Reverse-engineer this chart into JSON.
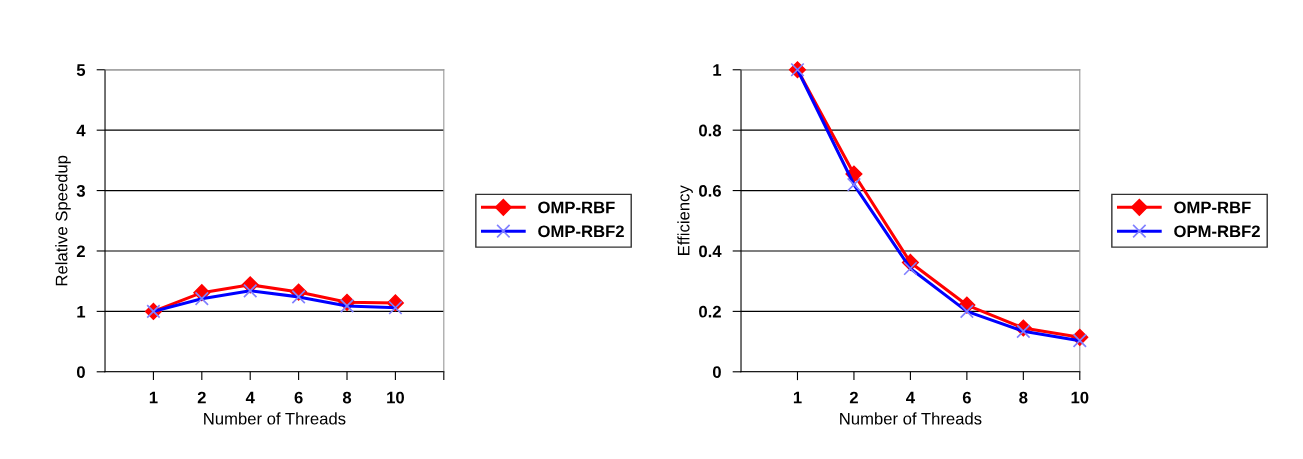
{
  "chart_data": [
    {
      "type": "line",
      "xlabel": "Number of Threads",
      "ylabel": "Relative Speedup",
      "categories": [
        "1",
        "2",
        "4",
        "6",
        "8",
        "10",
        null
      ],
      "ylim": [
        0,
        5
      ],
      "yticks": [
        0,
        1,
        2,
        3,
        4,
        5
      ],
      "grid": "y",
      "legend": "right",
      "series": [
        {
          "name": "OMP-RBF",
          "color": "#ff0000",
          "marker": "diamond",
          "values": [
            1,
            1.31,
            1.44,
            1.32,
            1.15,
            1.14,
            null
          ]
        },
        {
          "name": "OMP-RBF2",
          "color": "#0000ff",
          "marker": "cross",
          "values": [
            1,
            1.21,
            1.34,
            1.24,
            1.09,
            1.06,
            null
          ]
        }
      ]
    },
    {
      "type": "line",
      "xlabel": "Number of Threads",
      "ylabel": "Efficiency",
      "categories": [
        "1",
        "2",
        "4",
        "6",
        "8",
        "10"
      ],
      "ylim": [
        0,
        1
      ],
      "yticks": [
        0,
        0.2,
        0.4,
        0.6,
        0.8,
        1
      ],
      "grid": "y",
      "legend": "right",
      "series": [
        {
          "name": "OMP-RBF",
          "color": "#ff0000",
          "marker": "diamond",
          "values": [
            1,
            0.655,
            0.362,
            0.221,
            0.145,
            0.114
          ]
        },
        {
          "name": "OPM-RBF2",
          "color": "#0000ff",
          "marker": "cross",
          "values": [
            1,
            0.62,
            0.342,
            0.2,
            0.134,
            0.103
          ]
        }
      ]
    }
  ]
}
